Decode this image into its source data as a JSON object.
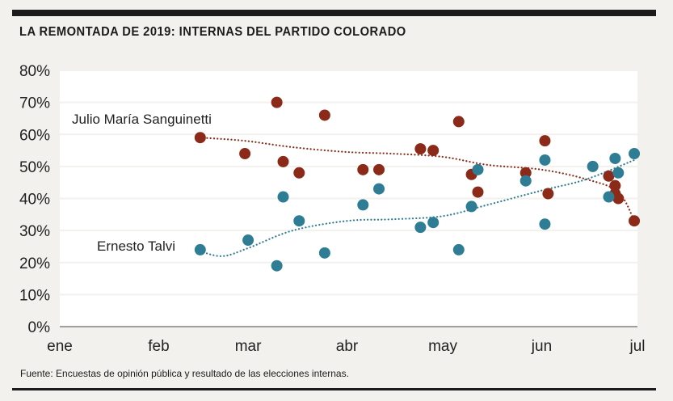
{
  "title": "LA REMONTADA DE 2019: INTERNAS DEL PARTIDO COLORADO",
  "source": "Fuente: Encuestas de opinión pública y resultado de las elecciones internas.",
  "chart_data": {
    "type": "scatter",
    "x_axis": {
      "ticks": [
        "ene",
        "feb",
        "mar",
        "abr",
        "may",
        "jun",
        "jul"
      ]
    },
    "y_axis": {
      "ticks": [
        "0%",
        "10%",
        "20%",
        "30%",
        "40%",
        "50%",
        "60%",
        "70%",
        "80%"
      ],
      "ylim": [
        0,
        80
      ]
    },
    "grid": true,
    "colors": {
      "Julio María Sanguinetti": "#8b2a18",
      "Ernesto Talvi": "#2f7d95"
    },
    "series": [
      {
        "name": "Julio María Sanguinetti",
        "points": [
          {
            "x": "2019-02-14",
            "y": 59
          },
          {
            "x": "2019-02-28",
            "y": 54
          },
          {
            "x": "2019-03-10",
            "y": 70
          },
          {
            "x": "2019-03-12",
            "y": 51.5
          },
          {
            "x": "2019-03-17",
            "y": 48
          },
          {
            "x": "2019-03-25",
            "y": 66
          },
          {
            "x": "2019-04-06",
            "y": 49
          },
          {
            "x": "2019-04-11",
            "y": 49
          },
          {
            "x": "2019-04-24",
            "y": 55.5
          },
          {
            "x": "2019-04-28",
            "y": 55
          },
          {
            "x": "2019-05-06",
            "y": 64
          },
          {
            "x": "2019-05-10",
            "y": 47.5
          },
          {
            "x": "2019-05-12",
            "y": 42
          },
          {
            "x": "2019-05-27",
            "y": 48
          },
          {
            "x": "2019-06-02",
            "y": 58
          },
          {
            "x": "2019-06-03",
            "y": 41.5
          },
          {
            "x": "2019-06-22",
            "y": 47
          },
          {
            "x": "2019-06-24",
            "y": 44
          },
          {
            "x": "2019-06-24",
            "y": 41.5
          },
          {
            "x": "2019-06-25",
            "y": 40
          },
          {
            "x": "2019-06-30",
            "y": 33
          }
        ],
        "trend": [
          {
            "x": "2019-02-14",
            "y": 59
          },
          {
            "x": "2019-02-28",
            "y": 58
          },
          {
            "x": "2019-03-15",
            "y": 56
          },
          {
            "x": "2019-04-01",
            "y": 54.5
          },
          {
            "x": "2019-04-15",
            "y": 54
          },
          {
            "x": "2019-05-01",
            "y": 53
          },
          {
            "x": "2019-05-15",
            "y": 50.5
          },
          {
            "x": "2019-06-01",
            "y": 49
          },
          {
            "x": "2019-06-15",
            "y": 46
          },
          {
            "x": "2019-06-25",
            "y": 42
          },
          {
            "x": "2019-06-30",
            "y": 33
          }
        ]
      },
      {
        "name": "Ernesto Talvi",
        "points": [
          {
            "x": "2019-02-14",
            "y": 24
          },
          {
            "x": "2019-03-01",
            "y": 27
          },
          {
            "x": "2019-03-10",
            "y": 19
          },
          {
            "x": "2019-03-12",
            "y": 40.5
          },
          {
            "x": "2019-03-17",
            "y": 33
          },
          {
            "x": "2019-03-25",
            "y": 23
          },
          {
            "x": "2019-04-06",
            "y": 38
          },
          {
            "x": "2019-04-11",
            "y": 43
          },
          {
            "x": "2019-04-24",
            "y": 31
          },
          {
            "x": "2019-04-28",
            "y": 32.5
          },
          {
            "x": "2019-05-06",
            "y": 24
          },
          {
            "x": "2019-05-10",
            "y": 37.5
          },
          {
            "x": "2019-05-12",
            "y": 49
          },
          {
            "x": "2019-05-27",
            "y": 45.5
          },
          {
            "x": "2019-06-02",
            "y": 52
          },
          {
            "x": "2019-06-02",
            "y": 32
          },
          {
            "x": "2019-06-17",
            "y": 50
          },
          {
            "x": "2019-06-22",
            "y": 40.5
          },
          {
            "x": "2019-06-24",
            "y": 52.5
          },
          {
            "x": "2019-06-25",
            "y": 48
          },
          {
            "x": "2019-06-30",
            "y": 54
          }
        ],
        "trend": [
          {
            "x": "2019-02-14",
            "y": 23.5
          },
          {
            "x": "2019-02-21",
            "y": 22
          },
          {
            "x": "2019-03-01",
            "y": 24.5
          },
          {
            "x": "2019-03-15",
            "y": 30
          },
          {
            "x": "2019-04-01",
            "y": 33
          },
          {
            "x": "2019-04-15",
            "y": 33.5
          },
          {
            "x": "2019-05-01",
            "y": 34.5
          },
          {
            "x": "2019-05-15",
            "y": 38
          },
          {
            "x": "2019-06-01",
            "y": 42.5
          },
          {
            "x": "2019-06-15",
            "y": 46
          },
          {
            "x": "2019-06-30",
            "y": 52
          }
        ]
      }
    ]
  }
}
